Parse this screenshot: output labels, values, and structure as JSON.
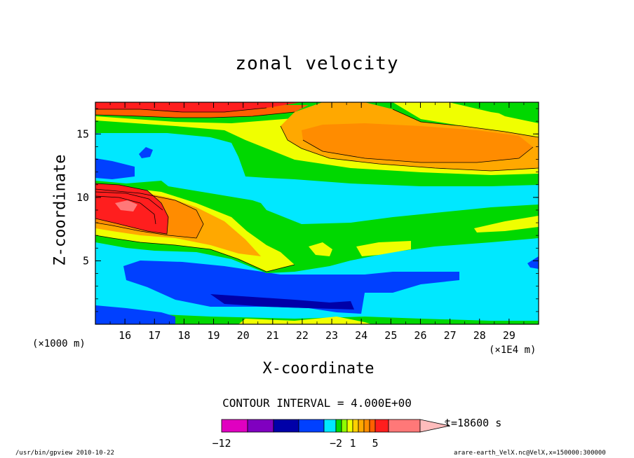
{
  "chart_data": {
    "type": "heatmap",
    "title": "zonal velocity",
    "xlabel": "X-coordinate",
    "ylabel": "Z-coordinate",
    "x_unit_note": "(×1E4 m)",
    "y_unit_note": "(×1000 m)",
    "x_ticks": [
      16,
      17,
      18,
      19,
      20,
      21,
      22,
      23,
      24,
      25,
      26,
      27,
      28,
      29
    ],
    "y_ticks": [
      5,
      10,
      15
    ],
    "xlim": [
      15,
      30
    ],
    "ylim": [
      0,
      17.5
    ],
    "contour_interval_text": "CONTOUR INTERVAL = 4.000E+00",
    "time_text": "t=18600 s",
    "colorbar": {
      "tick_labels": [
        {
          "value": -12,
          "label": "−12"
        },
        {
          "value": -2,
          "label": "−2"
        },
        {
          "value": 1,
          "label": "1"
        },
        {
          "value": 5,
          "label": "5"
        }
      ],
      "colors": [
        "#e000c0",
        "#8000c0",
        "#0000a8",
        "#0040ff",
        "#00e8ff",
        "#00d800",
        "#90ff00",
        "#f0ff00",
        "#ffd000",
        "#ffa800",
        "#ff8c00",
        "#ff6000",
        "#ff1e1e",
        "#ff7878",
        "#ffbcbc"
      ],
      "levels": [
        -18,
        -14,
        -10,
        -6,
        -2,
        -1,
        0,
        1,
        2,
        3,
        4,
        5,
        9,
        13
      ]
    },
    "regions": [
      {
        "level": "cyan",
        "color": "#00e8ff",
        "x": [
          15.0,
          30.0
        ],
        "z": [
          0.5,
          17.0
        ]
      },
      {
        "level": "blue-lower",
        "color": "#0040ff",
        "x": [
          15.9,
          27.1
        ],
        "z": [
          1.2,
          4.8
        ]
      },
      {
        "level": "blue-bottom",
        "color": "#0040ff",
        "x": [
          15.0,
          18.5
        ],
        "z": [
          0.3,
          1.4
        ]
      },
      {
        "level": "blue-upper",
        "color": "#0040ff",
        "x": [
          15.0,
          16.3
        ],
        "z": [
          11.7,
          13.0
        ]
      },
      {
        "level": "green-band",
        "color": "#00d800",
        "x": [
          15.0,
          30.0
        ],
        "z": [
          5.5,
          11.0
        ]
      },
      {
        "level": "red-core",
        "color": "#ff1e1e",
        "x": [
          15.0,
          17.6
        ],
        "z": [
          7.5,
          10.5
        ]
      },
      {
        "level": "pink-core",
        "color": "#ff7878",
        "x": [
          15.7,
          16.5
        ],
        "z": [
          8.8,
          9.6
        ]
      },
      {
        "level": "top-orange",
        "color": "#ffa800",
        "x": [
          15.0,
          30.0
        ],
        "z": [
          13.0,
          17.5
        ]
      },
      {
        "level": "top-red",
        "color": "#ff1e1e",
        "x": [
          15.0,
          20.5
        ],
        "z": [
          16.6,
          17.5
        ]
      }
    ]
  },
  "footer": {
    "left": "/usr/bin/gpview   2010-10-22",
    "right": "arare-earth_VelX.nc@VelX,x=150000:300000"
  }
}
